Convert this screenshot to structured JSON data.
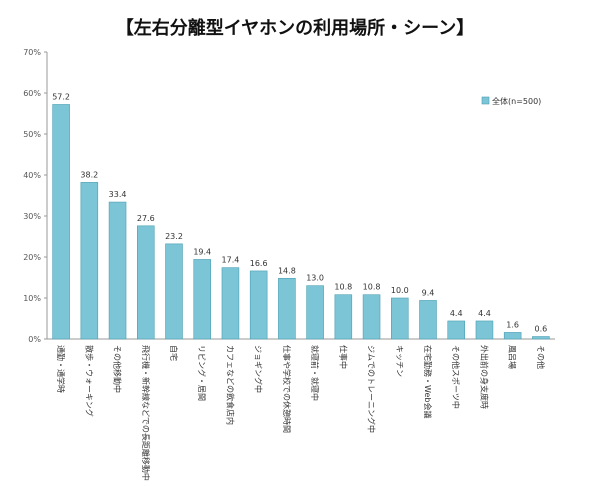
{
  "chart_data": {
    "type": "bar",
    "title": "【左右分離型イヤホンの利用場所・シーン】",
    "xlabel": "",
    "ylabel": "",
    "ylim": [
      0,
      70
    ],
    "yticks": [
      "0%",
      "10%",
      "20%",
      "30%",
      "40%",
      "50%",
      "60%",
      "70%"
    ],
    "grid": false,
    "legend_position": "top-right",
    "bar_color": "#7cc5d6",
    "bar_edge_color": "#4a9fb3",
    "categories": [
      "通勤・通学時",
      "散歩・ウォーキング",
      "その他移動中",
      "飛行機・新幹線などでの長距離移動中",
      "自宅",
      "リビング・居間",
      "カフェなどの飲食店内",
      "ジョギング中",
      "仕事や学校での休憩時間",
      "就寝前・就寝中",
      "仕事中",
      "ジムでのトレーニング中",
      "キッチン",
      "在宅勤務・Web会議",
      "その他スポーツ中",
      "外出前の身支度時",
      "風呂場",
      "その他"
    ],
    "series": [
      {
        "name": "全体(n=500)",
        "values": [
          57.2,
          38.2,
          33.4,
          27.6,
          23.2,
          19.4,
          17.4,
          16.6,
          14.8,
          13.0,
          10.8,
          10.8,
          10.0,
          9.4,
          4.4,
          4.4,
          1.6,
          0.6
        ],
        "labels": [
          "57.2",
          "38.2",
          "33.4",
          "27.6",
          "23.2",
          "19.4",
          "17.4",
          "16.6",
          "14.8",
          "13.0",
          "10.8",
          "10.8",
          "10.0",
          "9.4",
          "4.4",
          "4.4",
          "1.6",
          "0.6"
        ]
      }
    ]
  }
}
